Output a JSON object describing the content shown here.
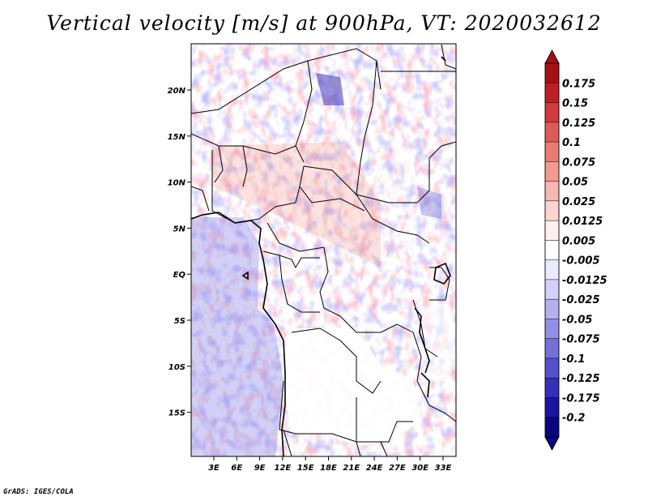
{
  "title": "Vertical velocity [m/s] at 900hPa, VT: 2020032612",
  "footer": "GrADS: IGES/COLA",
  "map": {
    "lat_ticks": [
      "20N",
      "15N",
      "10N",
      "5N",
      "EQ",
      "5S",
      "10S",
      "15S"
    ],
    "lon_ticks": [
      "3E",
      "6E",
      "9E",
      "12E",
      "15E",
      "18E",
      "21E",
      "24E",
      "27E",
      "30E",
      "33E"
    ]
  },
  "colorbar": {
    "labels": [
      "0.175",
      "0.15",
      "0.125",
      "0.1",
      "0.075",
      "0.05",
      "0.025",
      "0.0125",
      "0.005",
      "-0.005",
      "-0.0125",
      "-0.025",
      "-0.05",
      "-0.075",
      "-0.1",
      "-0.125",
      "-0.175",
      "-0.2"
    ],
    "colors": [
      "#a50f15",
      "#bf1e24",
      "#d33b3b",
      "#e05a55",
      "#e97b73",
      "#f29a91",
      "#f7b8b1",
      "#fcd5d0",
      "#fff0ee",
      "#ffffff",
      "#ecebfd",
      "#d2d1f8",
      "#b3b1f0",
      "#9290e6",
      "#7370da",
      "#5450cc",
      "#3430b8",
      "#1a149e",
      "#0a0680"
    ]
  }
}
